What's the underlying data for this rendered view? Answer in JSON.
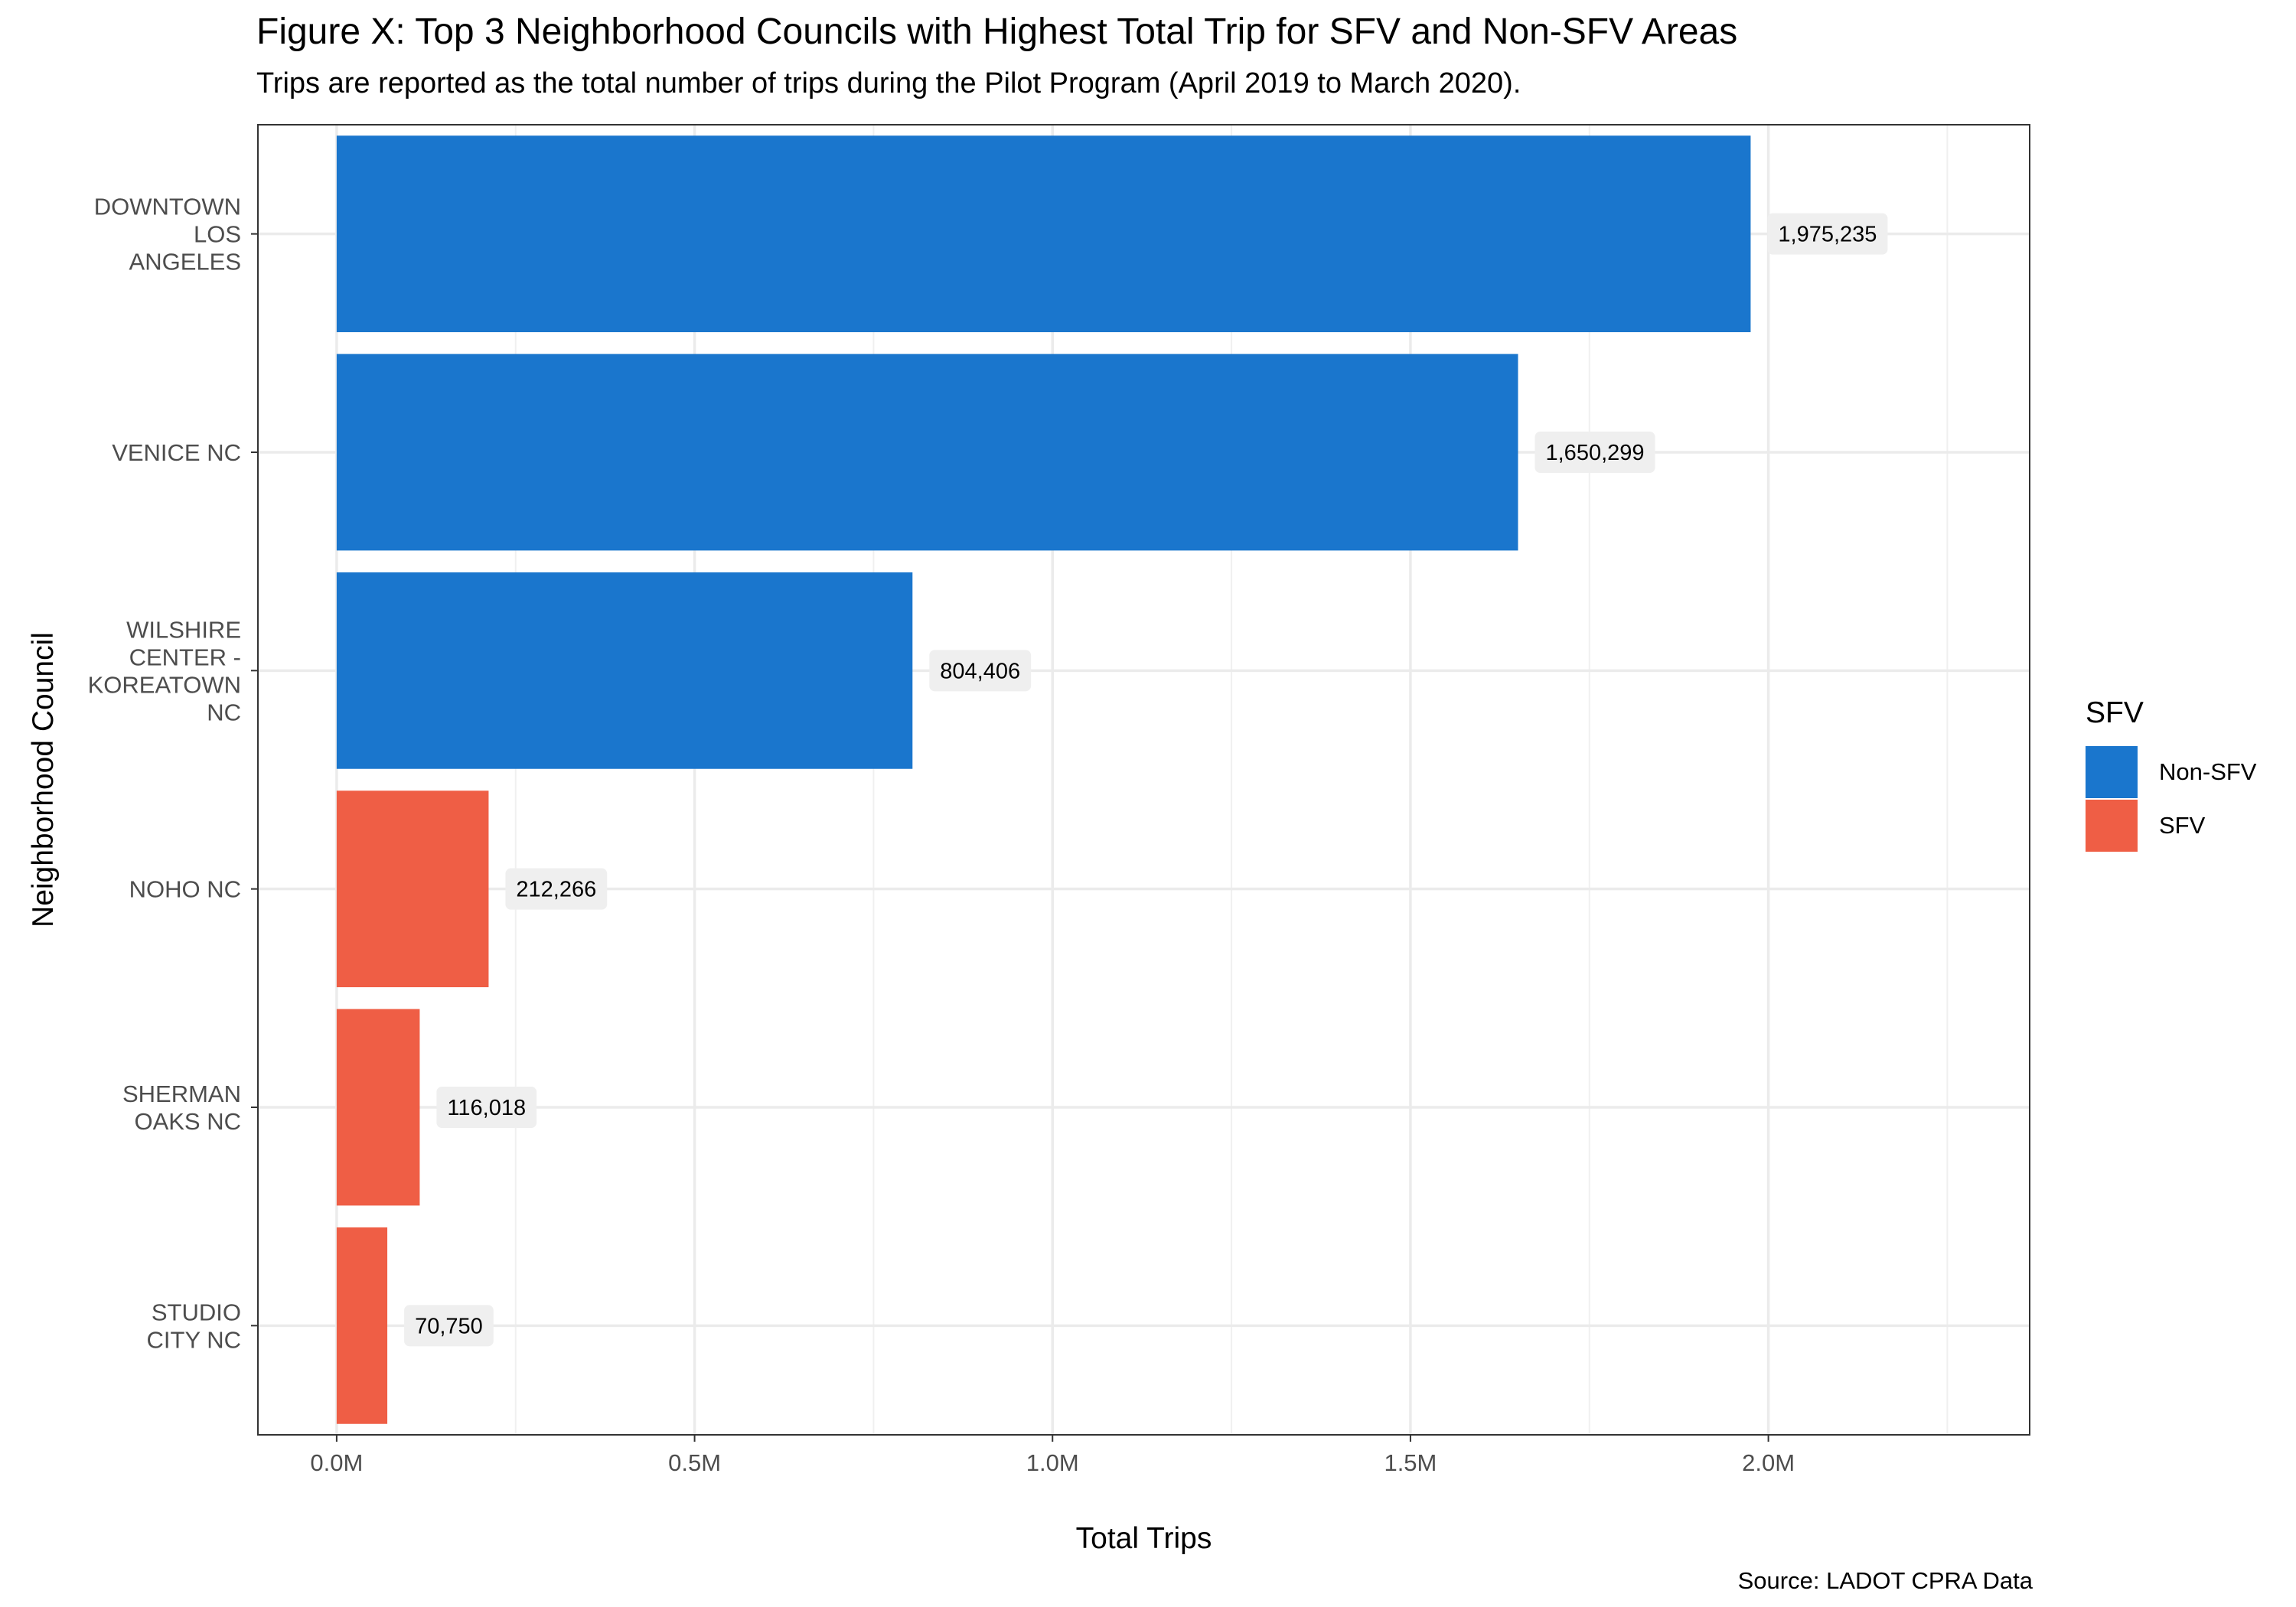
{
  "chart_data": {
    "type": "bar",
    "orientation": "horizontal",
    "title": "Figure X: Top 3 Neighborhood Councils with Highest Total Trip for SFV and Non-SFV Areas",
    "subtitle": "Trips are reported as the total number of trips during the Pilot Program (April 2019 to March 2020).",
    "caption": "Source: LADOT CPRA Data",
    "xlabel": "Total Trips",
    "ylabel": "Neighborhood Council",
    "xlim": [
      -110000,
      2365000
    ],
    "x_ticks": [
      0,
      500000,
      1000000,
      1500000,
      2000000
    ],
    "x_tick_labels": [
      "0.0M",
      "0.5M",
      "1.0M",
      "1.5M",
      "2.0M"
    ],
    "grid": true,
    "legend_position": "right",
    "legend_title": "SFV",
    "groups": [
      {
        "name": "Non-SFV",
        "color": "#1A76CD"
      },
      {
        "name": "SFV",
        "color": "#EF5E45"
      }
    ],
    "bars": [
      {
        "category": [
          "DOWNTOWN",
          "LOS",
          "ANGELES"
        ],
        "value": 1975235,
        "label": "1,975,235",
        "group": "Non-SFV"
      },
      {
        "category": [
          "VENICE NC"
        ],
        "value": 1650299,
        "label": "1,650,299",
        "group": "Non-SFV"
      },
      {
        "category": [
          "WILSHIRE",
          "CENTER -",
          "KOREATOWN",
          "NC"
        ],
        "value": 804406,
        "label": "804,406",
        "group": "Non-SFV"
      },
      {
        "category": [
          "NOHO NC"
        ],
        "value": 212266,
        "label": "212,266",
        "group": "SFV"
      },
      {
        "category": [
          "SHERMAN",
          "OAKS NC"
        ],
        "value": 116018,
        "label": "116,018",
        "group": "SFV"
      },
      {
        "category": [
          "STUDIO",
          "CITY NC"
        ],
        "value": 70750,
        "label": "70,750",
        "group": "SFV"
      }
    ]
  }
}
